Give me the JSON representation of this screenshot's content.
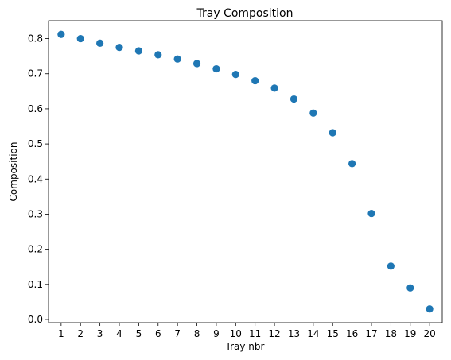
{
  "chart_data": {
    "type": "scatter",
    "title": "Tray Composition",
    "xlabel": "Tray nbr",
    "ylabel": "Composition",
    "x": [
      1,
      2,
      3,
      4,
      5,
      6,
      7,
      8,
      9,
      10,
      11,
      12,
      13,
      14,
      15,
      16,
      17,
      18,
      19,
      20
    ],
    "y": [
      0.812,
      0.8,
      0.787,
      0.775,
      0.765,
      0.754,
      0.742,
      0.729,
      0.714,
      0.698,
      0.68,
      0.659,
      0.628,
      0.588,
      0.532,
      0.444,
      0.302,
      0.152,
      0.09,
      0.03
    ],
    "xlim": [
      0.35,
      20.65
    ],
    "ylim": [
      -0.0091,
      0.8511
    ],
    "xticks": [
      "1",
      "2",
      "3",
      "4",
      "5",
      "6",
      "7",
      "8",
      "9",
      "10",
      "11",
      "12",
      "13",
      "14",
      "15",
      "16",
      "17",
      "18",
      "19",
      "20"
    ],
    "yticks": [
      0.0,
      0.1,
      0.2,
      0.3,
      0.4,
      0.5,
      0.6,
      0.7,
      0.8
    ],
    "ytick_labels": [
      "0.0",
      "0.1",
      "0.2",
      "0.3",
      "0.4",
      "0.5",
      "0.6",
      "0.7",
      "0.8"
    ],
    "marker_color": "#1f77b4",
    "grid": false,
    "legend": false
  }
}
